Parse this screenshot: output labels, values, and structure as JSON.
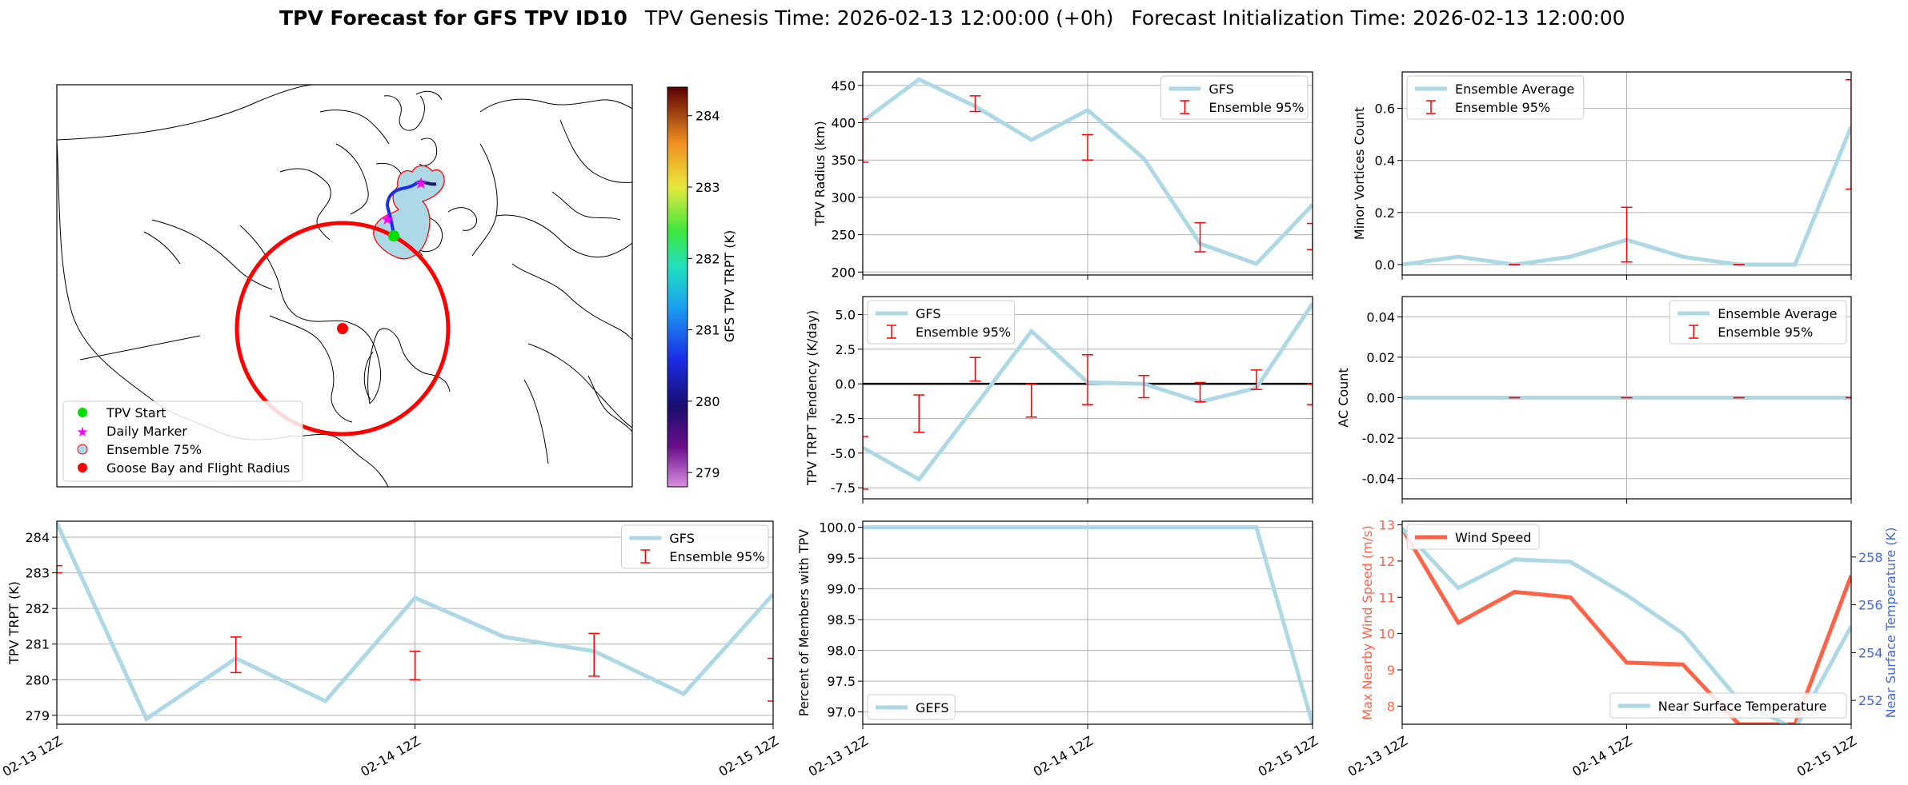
{
  "title": {
    "bold": "TPV Forecast for GFS TPV ID10",
    "genesis": "TPV Genesis Time: 2026-02-13 12:00:00 (+0h)",
    "init": "Forecast Initialization Time: 2026-02-13 12:00:00"
  },
  "colors": {
    "gfs": "#add8e6",
    "ensemble": "#ff0000",
    "wind": "#ff6347",
    "temp_axis": "#4169e1",
    "grid": "#b0b0b0"
  },
  "map": {
    "legend": [
      "TPV Start",
      "Daily Marker",
      "Ensemble 75%",
      "Goose Bay and Flight Radius"
    ],
    "colorbar_label": "GFS TPV TRPT (K)",
    "colorbar_ticks": [
      "284",
      "283",
      "282",
      "281",
      "280",
      "279"
    ],
    "colorbar_range": [
      278.8,
      284.4
    ]
  },
  "time_ticks": [
    "02-13 12Z",
    "02-14 12Z",
    "02-15 12Z"
  ],
  "chart_data": [
    {
      "id": "radius",
      "type": "line",
      "ylabel": "TPV Radius (km)",
      "ylim": [
        196,
        468
      ],
      "yticks": [
        200,
        250,
        300,
        350,
        400,
        450
      ],
      "x_hours": [
        0,
        6,
        12,
        18,
        24,
        30,
        36,
        42,
        48
      ],
      "series": [
        {
          "name": "GFS",
          "values": [
            402,
            458,
            422,
            377,
            417,
            352,
            238,
            211,
            290
          ]
        }
      ],
      "ensemble": [
        {
          "x": 0,
          "lo": 347,
          "hi": 405
        },
        {
          "x": 12,
          "lo": 415,
          "hi": 436
        },
        {
          "x": 24,
          "lo": 350,
          "hi": 384
        },
        {
          "x": 36,
          "lo": 227,
          "hi": 266
        },
        {
          "x": 48,
          "lo": 230,
          "hi": 265
        }
      ],
      "legend": [
        "GFS",
        "Ensemble 95%"
      ],
      "legend_pos": "upper right",
      "grid": true
    },
    {
      "id": "minor",
      "type": "line",
      "ylabel": "Minor Vortices Count",
      "ylim": [
        -0.04,
        0.74
      ],
      "yticks": [
        0.0,
        0.2,
        0.4,
        0.6
      ],
      "x_hours": [
        0,
        6,
        12,
        18,
        24,
        30,
        36,
        42,
        48
      ],
      "series": [
        {
          "name": "Ensemble Average",
          "values": [
            0.0,
            0.03,
            0.0,
            0.03,
            0.095,
            0.03,
            0.0,
            0.0,
            0.53
          ]
        }
      ],
      "ensemble": [
        {
          "x": 12,
          "lo": 0.0,
          "hi": 0.0
        },
        {
          "x": 24,
          "lo": 0.01,
          "hi": 0.22
        },
        {
          "x": 36,
          "lo": 0.0,
          "hi": 0.0
        },
        {
          "x": 48,
          "lo": 0.29,
          "hi": 0.71
        }
      ],
      "legend": [
        "Ensemble Average",
        "Ensemble 95%"
      ],
      "legend_pos": "upper left",
      "grid": true
    },
    {
      "id": "tendency",
      "type": "line",
      "ylabel": "TPV TRPT Tendency (K/day)",
      "ylim": [
        -8.3,
        6.3
      ],
      "yticks": [
        -7.5,
        -5.0,
        -2.5,
        0.0,
        2.5,
        5.0
      ],
      "x_hours": [
        0,
        6,
        12,
        18,
        24,
        30,
        36,
        42,
        48
      ],
      "series": [
        {
          "name": "GFS",
          "values": [
            -4.6,
            -6.9,
            -1.6,
            3.8,
            0.1,
            0.0,
            -1.3,
            -0.3,
            5.8
          ]
        }
      ],
      "ensemble": [
        {
          "x": 0,
          "lo": -7.6,
          "hi": -3.8
        },
        {
          "x": 6,
          "lo": -3.5,
          "hi": -0.8
        },
        {
          "x": 12,
          "lo": 0.2,
          "hi": 1.9
        },
        {
          "x": 18,
          "lo": -2.4,
          "hi": 0.0
        },
        {
          "x": 24,
          "lo": -1.5,
          "hi": 2.1
        },
        {
          "x": 30,
          "lo": -1.0,
          "hi": 0.6
        },
        {
          "x": 36,
          "lo": -1.3,
          "hi": 0.1
        },
        {
          "x": 42,
          "lo": -0.4,
          "hi": 1.0
        },
        {
          "x": 48,
          "lo": -1.5,
          "hi": 0.0
        }
      ],
      "hline": 0,
      "legend": [
        "GFS",
        "Ensemble 95%"
      ],
      "legend_pos": "upper left",
      "grid": true
    },
    {
      "id": "ac",
      "type": "line",
      "ylabel": "AC Count",
      "ylim": [
        -0.05,
        0.05
      ],
      "yticks": [
        -0.04,
        -0.02,
        0.0,
        0.02,
        0.04
      ],
      "ytick_fmt": 2,
      "x_hours": [
        0,
        6,
        12,
        18,
        24,
        30,
        36,
        42,
        48
      ],
      "series": [
        {
          "name": "Ensemble Average",
          "values": [
            0,
            0,
            0,
            0,
            0,
            0,
            0,
            0,
            0
          ]
        }
      ],
      "ensemble": [
        {
          "x": 12,
          "lo": 0,
          "hi": 0
        },
        {
          "x": 24,
          "lo": 0,
          "hi": 0
        },
        {
          "x": 36,
          "lo": 0,
          "hi": 0
        },
        {
          "x": 48,
          "lo": 0,
          "hi": 0
        }
      ],
      "legend": [
        "Ensemble Average",
        "Ensemble 95%"
      ],
      "legend_pos": "upper right",
      "grid": true
    },
    {
      "id": "trpt",
      "type": "line",
      "ylabel": "TPV TRPT (K)",
      "ylim": [
        278.75,
        284.45
      ],
      "yticks": [
        279,
        280,
        281,
        282,
        283,
        284
      ],
      "x_hours": [
        0,
        6,
        12,
        18,
        24,
        30,
        36,
        42,
        48
      ],
      "series": [
        {
          "name": "GFS",
          "values": [
            284.4,
            278.9,
            280.6,
            279.4,
            282.3,
            281.2,
            280.8,
            279.6,
            282.4
          ]
        }
      ],
      "ensemble": [
        {
          "x": 0,
          "lo": 283.0,
          "hi": 283.2
        },
        {
          "x": 12,
          "lo": 280.2,
          "hi": 281.2
        },
        {
          "x": 24,
          "lo": 280.0,
          "hi": 280.8
        },
        {
          "x": 36,
          "lo": 280.1,
          "hi": 281.3
        },
        {
          "x": 48,
          "lo": 279.4,
          "hi": 280.6
        }
      ],
      "legend": [
        "GFS",
        "Ensemble 95%"
      ],
      "legend_pos": "upper right",
      "grid": true
    },
    {
      "id": "percent",
      "type": "line",
      "ylabel": "Percent of Members with TPV",
      "ylim": [
        96.8,
        100.1
      ],
      "yticks": [
        97.0,
        97.5,
        98.0,
        98.5,
        99.0,
        99.5,
        100.0
      ],
      "x_hours": [
        0,
        6,
        12,
        18,
        24,
        30,
        36,
        42,
        48
      ],
      "series": [
        {
          "name": "GEFS",
          "values": [
            100,
            100,
            100,
            100,
            100,
            100,
            100,
            100,
            96.8
          ]
        }
      ],
      "legend": [
        "GEFS"
      ],
      "legend_pos": "lower left",
      "grid": true
    },
    {
      "id": "wind_temp",
      "type": "line",
      "ylabel": "Max Nearby Wind Speed (m/s)",
      "ylabel_right": "Near Surface Temperature (K)",
      "ylim": [
        7.5,
        13.1
      ],
      "yticks": [
        8,
        9,
        10,
        11,
        12,
        13
      ],
      "ylim_right": [
        251.0,
        259.5
      ],
      "yticks_right": [
        252,
        254,
        256,
        258
      ],
      "x_hours": [
        0,
        6,
        12,
        18,
        24,
        30,
        36,
        42,
        48
      ],
      "series": [
        {
          "name": "Wind Speed",
          "axis": "left",
          "values": [
            12.9,
            10.3,
            11.15,
            11.0,
            9.2,
            9.15,
            7.5,
            7.5,
            11.6
          ]
        },
        {
          "name": "Near Surface Temperature",
          "axis": "right",
          "values": [
            259.2,
            256.7,
            257.9,
            257.8,
            256.4,
            254.8,
            252.0,
            250.8,
            255.1
          ]
        }
      ],
      "legend": [
        "Wind Speed",
        "Near Surface Temperature"
      ],
      "grid": false
    }
  ]
}
